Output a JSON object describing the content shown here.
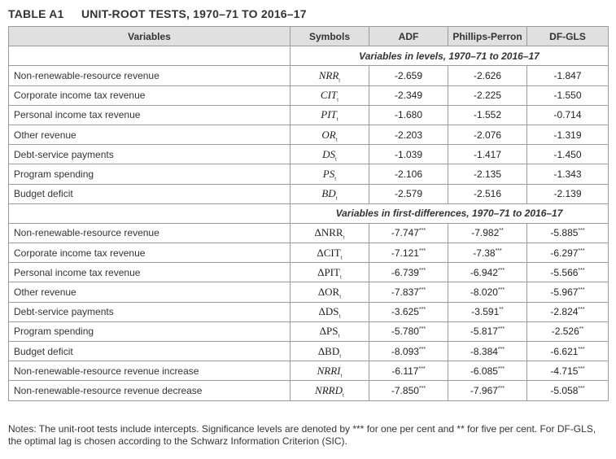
{
  "title": {
    "label": "TABLE A1",
    "text": "UNIT-ROOT TESTS, 1970–71 TO 2016–17"
  },
  "headers": [
    "Variables",
    "Symbols",
    "ADF",
    "Phillips-Perron",
    "DF-GLS"
  ],
  "sections": [
    {
      "heading": "Variables in levels, 1970–71 to 2016–17",
      "rows": [
        {
          "variable": "Non-renewable-resource revenue",
          "symbol": "NRR",
          "sub": "t",
          "delta": false,
          "adf": "-2.659",
          "adf_sig": "",
          "pp": "-2.626",
          "pp_sig": "",
          "dfgls": "-1.847",
          "dfgls_sig": ""
        },
        {
          "variable": "Corporate income tax revenue",
          "symbol": "CIT",
          "sub": "t",
          "delta": false,
          "adf": "-2.349",
          "adf_sig": "",
          "pp": "-2.225",
          "pp_sig": "",
          "dfgls": "-1.550",
          "dfgls_sig": ""
        },
        {
          "variable": "Personal income tax revenue",
          "symbol": "PIT",
          "sub": "t",
          "delta": false,
          "adf": "-1.680",
          "adf_sig": "",
          "pp": "-1.552",
          "pp_sig": "",
          "dfgls": "-0.714",
          "dfgls_sig": ""
        },
        {
          "variable": "Other revenue",
          "symbol": "OR",
          "sub": "t",
          "delta": false,
          "adf": "-2.203",
          "adf_sig": "",
          "pp": "-2.076",
          "pp_sig": "",
          "dfgls": "-1.319",
          "dfgls_sig": ""
        },
        {
          "variable": "Debt-service payments",
          "symbol": "DS",
          "sub": "t",
          "delta": false,
          "adf": "-1.039",
          "adf_sig": "",
          "pp": "-1.417",
          "pp_sig": "",
          "dfgls": "-1.450",
          "dfgls_sig": ""
        },
        {
          "variable": "Program spending",
          "symbol": "PS",
          "sub": "t",
          "delta": false,
          "adf": "-2.106",
          "adf_sig": "",
          "pp": "-2.135",
          "pp_sig": "",
          "dfgls": "-1.343",
          "dfgls_sig": ""
        },
        {
          "variable": "Budget deficit",
          "symbol": "BD",
          "sub": "t",
          "delta": false,
          "adf": "-2.579",
          "adf_sig": "",
          "pp": "-2.516",
          "pp_sig": "",
          "dfgls": "-2.139",
          "dfgls_sig": ""
        }
      ]
    },
    {
      "heading": "Variables in first-differences, 1970–71 to 2016–17",
      "rows": [
        {
          "variable": "Non-renewable-resource revenue",
          "symbol": "ΔNRR",
          "sub": "t",
          "delta": true,
          "adf": "-7.747",
          "adf_sig": "***",
          "pp": "-7.982",
          "pp_sig": "**",
          "dfgls": "-5.885",
          "dfgls_sig": "***"
        },
        {
          "variable": "Corporate income tax revenue",
          "symbol": "ΔCIT",
          "sub": "t",
          "delta": true,
          "adf": "-7.121",
          "adf_sig": "***",
          "pp": "-7.38",
          "pp_sig": "***",
          "dfgls": "-6.297",
          "dfgls_sig": "***"
        },
        {
          "variable": "Personal income tax revenue",
          "symbol": "ΔPIT",
          "sub": "t",
          "delta": true,
          "adf": "-6.739",
          "adf_sig": "***",
          "pp": "-6.942",
          "pp_sig": "***",
          "dfgls": "-5.566",
          "dfgls_sig": "***"
        },
        {
          "variable": "Other revenue",
          "symbol": "ΔOR",
          "sub": "t",
          "delta": true,
          "adf": "-7.837",
          "adf_sig": "***",
          "pp": "-8.020",
          "pp_sig": "***",
          "dfgls": "-5.967",
          "dfgls_sig": "***"
        },
        {
          "variable": "Debt-service payments",
          "symbol": "ΔDS",
          "sub": "t",
          "delta": true,
          "adf": "-3.625",
          "adf_sig": "***",
          "pp": "-3.591",
          "pp_sig": "**",
          "dfgls": "-2.824",
          "dfgls_sig": "***"
        },
        {
          "variable": "Program spending",
          "symbol": "ΔPS",
          "sub": "t",
          "delta": true,
          "adf": "-5.780",
          "adf_sig": "***",
          "pp": "-5.817",
          "pp_sig": "***",
          "dfgls": "-2.526",
          "dfgls_sig": "**"
        },
        {
          "variable": "Budget deficit",
          "symbol": "ΔBD",
          "sub": "t",
          "delta": true,
          "adf": "-8.093",
          "adf_sig": "***",
          "pp": "-8.384",
          "pp_sig": "***",
          "dfgls": "-6.621",
          "dfgls_sig": "***"
        },
        {
          "variable": "Non-renewable-resource revenue increase",
          "symbol": "NRRI",
          "sub": "t",
          "delta": false,
          "adf": "-6.117",
          "adf_sig": "***",
          "pp": "-6.085",
          "pp_sig": "***",
          "dfgls": "-4.715",
          "dfgls_sig": "***"
        },
        {
          "variable": "Non-renewable-resource revenue decrease",
          "symbol": "NRRD",
          "sub": "t",
          "delta": false,
          "adf": "-7.850",
          "adf_sig": "***",
          "pp": "-7.967",
          "pp_sig": "***",
          "dfgls": "-5.058",
          "dfgls_sig": "***"
        }
      ]
    }
  ],
  "notes": "Notes: The unit-root tests include intercepts. Significance levels are denoted by *** for one per cent and ** for five per cent. For DF-GLS, the optimal lag is chosen according to the Schwarz Information Criterion (SIC)."
}
